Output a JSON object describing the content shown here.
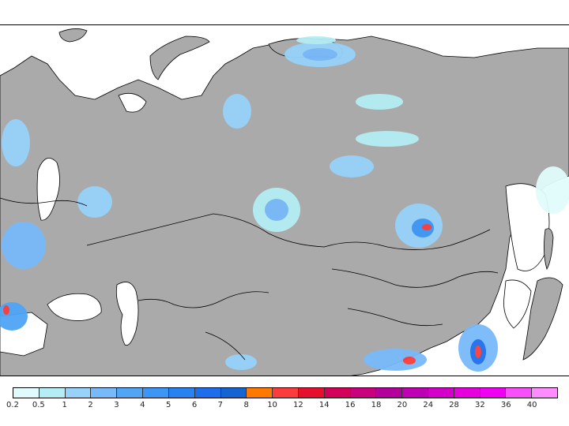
{
  "map": {
    "region": "Eurasia",
    "ocean_color": "#ffffff",
    "land_color": "#aaaaaa",
    "coastline_color": "#000000",
    "border_color": "#000000"
  },
  "legend": {
    "colors": [
      "#e0fbfb",
      "#b4eef4",
      "#96d2fa",
      "#78b9fa",
      "#50a5f5",
      "#3c96f5",
      "#2882f0",
      "#1e6eeb",
      "#1464d2",
      "#ff7800",
      "#fa3c3c",
      "#e60f2d",
      "#d2005a",
      "#c8007d",
      "#b4009b",
      "#be00b4",
      "#d200c8",
      "#e600dc",
      "#f000f0",
      "#f850f8",
      "#ff8cff"
    ],
    "labels": [
      "0.2",
      "0.5",
      "1",
      "2",
      "3",
      "4",
      "5",
      "6",
      "7",
      "8",
      "10",
      "12",
      "14",
      "16",
      "18",
      "20",
      "24",
      "28",
      "32",
      "36",
      "40"
    ]
  }
}
